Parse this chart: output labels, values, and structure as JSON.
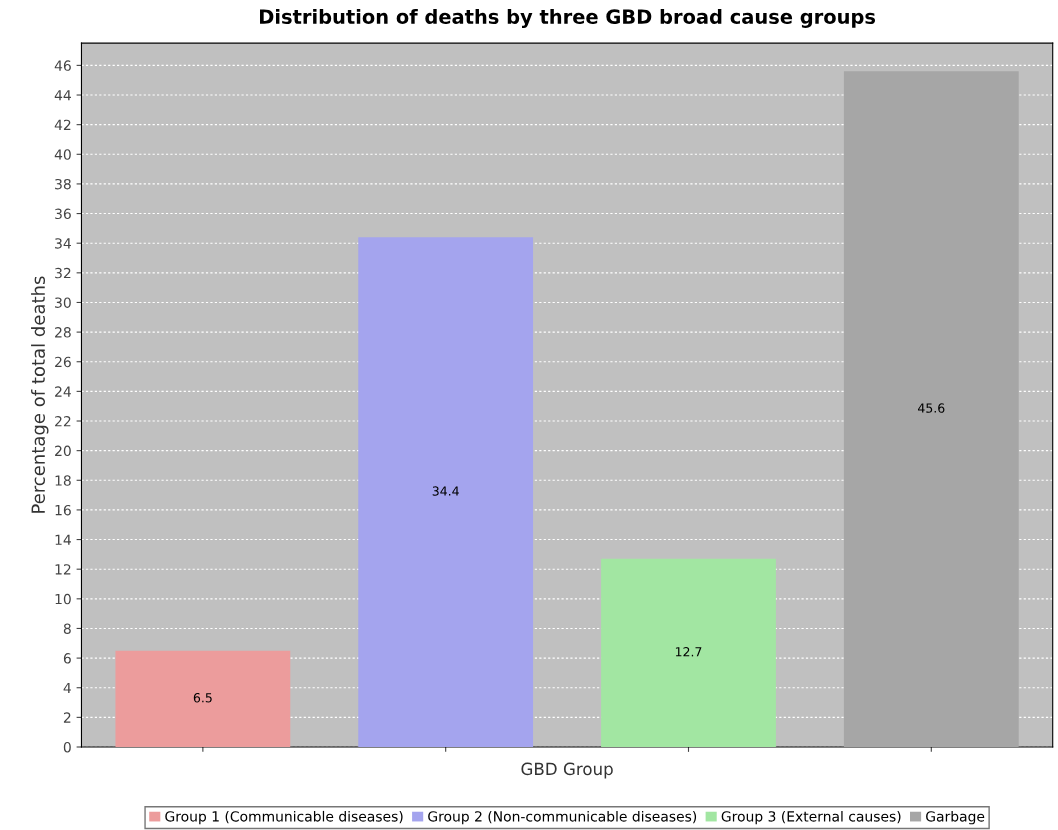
{
  "chart_data": {
    "type": "bar",
    "title": "Distribution of deaths by three GBD broad cause groups",
    "xlabel": "GBD Group",
    "ylabel": "Percentage of total deaths",
    "categories": [
      null,
      null,
      null,
      null
    ],
    "series": [
      {
        "name": "Group 1 (Communicable diseases)",
        "color": "#ec9c9c",
        "values": [
          6.5,
          null,
          null,
          null
        ]
      },
      {
        "name": "Group 2 (Non-communicable diseases)",
        "color": "#a4a4ee",
        "values": [
          null,
          34.4,
          null,
          null
        ]
      },
      {
        "name": "Group 3 (External causes)",
        "color": "#a2e6a2",
        "values": [
          null,
          null,
          12.7,
          null
        ]
      },
      {
        "name": "Garbage",
        "color": "#a6a6a6",
        "values": [
          null,
          null,
          null,
          45.6
        ]
      }
    ],
    "ylim": [
      0,
      47.5
    ],
    "yticks": [
      0,
      2,
      4,
      6,
      8,
      10,
      12,
      14,
      16,
      18,
      20,
      22,
      24,
      26,
      28,
      30,
      32,
      34,
      36,
      38,
      40,
      42,
      44,
      46
    ],
    "grid": "y",
    "legend": "bottom",
    "data_labels": true
  }
}
